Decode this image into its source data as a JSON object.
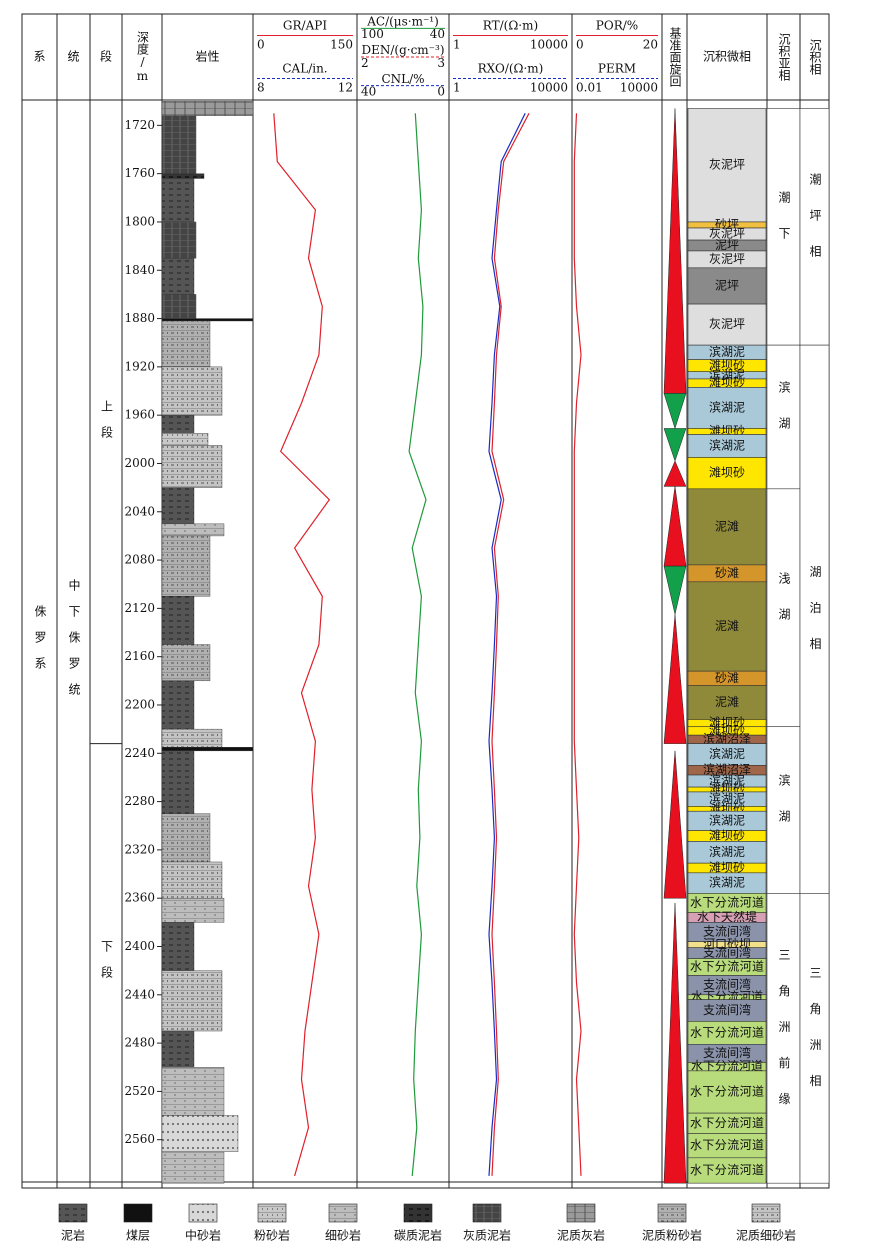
{
  "header": {
    "system": "系",
    "series": "统",
    "member": "段",
    "depth": "深度/m",
    "lithology": "岩性",
    "cycle": "基准面旋回",
    "microfacies": "沉积微相",
    "subfacies": "沉积亚相",
    "facies": "沉积相"
  },
  "depth_range": [
    1699,
    2600
  ],
  "depth_ticks": [
    1720,
    1760,
    1800,
    1840,
    1880,
    1920,
    1960,
    2000,
    2040,
    2080,
    2120,
    2160,
    2200,
    2240,
    2280,
    2320,
    2360,
    2400,
    2440,
    2480,
    2520,
    2560
  ],
  "depths": [
    1710,
    1750,
    1790,
    1830,
    1870,
    1910,
    1950,
    1990,
    2030,
    2070,
    2110,
    2150,
    2190,
    2230,
    2270,
    2310,
    2350,
    2390,
    2430,
    2470,
    2510,
    2550,
    2590
  ],
  "tracks": [
    {
      "curves": [
        {
          "name": "GR/API",
          "scale": [
            0,
            150
          ],
          "color": "#e0202a",
          "values": [
            30,
            35,
            90,
            80,
            100,
            95,
            70,
            40,
            110,
            60,
            100,
            95,
            70,
            90,
            85,
            90,
            80,
            95,
            85,
            75,
            70,
            80,
            60
          ]
        },
        {
          "name": "CAL/in.",
          "scale": [
            8,
            12
          ],
          "color": "#1a2cc0"
        }
      ]
    },
    {
      "curves": [
        {
          "name": "AC/(μs·m⁻¹)",
          "scale": [
            100,
            40
          ],
          "color": "#1f9a3a",
          "values": [
            62,
            60,
            58,
            60,
            57,
            58,
            62,
            66,
            55,
            64,
            58,
            60,
            62,
            58,
            60,
            59,
            61,
            58,
            60,
            62,
            63,
            61,
            64
          ]
        },
        {
          "name": "DEN/(g·cm⁻³)",
          "scale": [
            2,
            3
          ],
          "color": "#e0202a"
        },
        {
          "name": "CNL/%",
          "scale": [
            40,
            0
          ],
          "color": "#1a2cc0"
        }
      ]
    },
    {
      "curves": [
        {
          "name": "RT/(Ω·m)",
          "scale": [
            1,
            10000
          ],
          "color": "#e0202a",
          "log": true,
          "values": [
            400,
            60,
            40,
            30,
            50,
            35,
            30,
            25,
            60,
            30,
            40,
            35,
            30,
            25,
            30,
            35,
            30,
            25,
            30,
            35,
            40,
            30,
            25
          ]
        },
        {
          "name": "RXO/(Ω·m)",
          "scale": [
            1,
            10000
          ],
          "color": "#1a2cc0",
          "log": true,
          "values": [
            300,
            50,
            35,
            25,
            45,
            30,
            25,
            20,
            50,
            25,
            35,
            30,
            25,
            20,
            25,
            30,
            25,
            20,
            25,
            30,
            35,
            25,
            20
          ]
        }
      ]
    },
    {
      "curves": [
        {
          "name": "POR/%",
          "scale": [
            0,
            20
          ],
          "color": "#e0202a",
          "values": [
            1,
            0.5,
            0.5,
            0.5,
            1,
            2,
            1,
            0.5,
            0.5,
            0.5,
            0.5,
            0.5,
            0.5,
            0.5,
            1,
            1.5,
            1,
            0.5,
            1,
            2,
            1,
            1.5,
            2
          ]
        },
        {
          "name": "PERM",
          "scale": [
            0.01,
            10000
          ],
          "color": "#1a2cc0",
          "log": true
        }
      ]
    }
  ],
  "strata": {
    "system": [
      {
        "label": "侏罗系",
        "top": 1699,
        "bottom": 2600
      }
    ],
    "series": [
      {
        "label": "中下侏罗统",
        "top": 1699,
        "bottom": 2600
      }
    ],
    "member": [
      {
        "label": "上段",
        "top": 1706,
        "bottom": 2232
      },
      {
        "label": "下段",
        "top": 2232,
        "bottom": 2600
      }
    ]
  },
  "rocks": [
    "泥岩",
    "煤层",
    "中砂岩",
    "粉砂岩",
    "细砂岩",
    "碳质泥岩",
    "灰质泥岩",
    "泥质灰岩",
    "泥质粉砂岩",
    "泥质细砂岩"
  ],
  "lithology": [
    [
      1700,
      1712,
      7
    ],
    [
      1712,
      1760,
      6
    ],
    [
      1760,
      1764,
      5
    ],
    [
      1764,
      1800,
      0
    ],
    [
      1800,
      1830,
      6
    ],
    [
      1830,
      1860,
      0
    ],
    [
      1860,
      1880,
      6
    ],
    [
      1880,
      1882,
      1
    ],
    [
      1882,
      1920,
      8
    ],
    [
      1920,
      1960,
      9
    ],
    [
      1960,
      1975,
      0
    ],
    [
      1975,
      1985,
      3
    ],
    [
      1985,
      2020,
      9
    ],
    [
      2020,
      2050,
      0
    ],
    [
      2050,
      2060,
      4
    ],
    [
      2060,
      2110,
      8
    ],
    [
      2110,
      2150,
      0
    ],
    [
      2150,
      2180,
      8
    ],
    [
      2180,
      2220,
      0
    ],
    [
      2220,
      2235,
      9
    ],
    [
      2235,
      2238,
      1
    ],
    [
      2238,
      2290,
      0
    ],
    [
      2290,
      2330,
      8
    ],
    [
      2330,
      2360,
      9
    ],
    [
      2360,
      2380,
      4
    ],
    [
      2380,
      2420,
      0
    ],
    [
      2420,
      2470,
      9
    ],
    [
      2470,
      2500,
      0
    ],
    [
      2500,
      2540,
      4
    ],
    [
      2540,
      2570,
      2
    ],
    [
      2570,
      2596,
      4
    ]
  ],
  "cycles": {
    "colors": {
      "rise": "#e8101e",
      "fall": "#12a04a"
    },
    "items": [
      {
        "kind": "rise",
        "top": 1706,
        "bottom": 1942
      },
      {
        "kind": "fall",
        "top": 1942,
        "bottom": 1971
      },
      {
        "kind": "fall",
        "top": 1971,
        "bottom": 1998
      },
      {
        "kind": "rise",
        "top": 1998,
        "bottom": 2019
      },
      {
        "kind": "rise",
        "top": 2019,
        "bottom": 2085
      },
      {
        "kind": "fall",
        "top": 2085,
        "bottom": 2125
      },
      {
        "kind": "rise",
        "top": 2125,
        "bottom": 2232
      },
      {
        "kind": "rise",
        "top": 2238,
        "bottom": 2360
      },
      {
        "kind": "rise",
        "top": 2364,
        "bottom": 2596
      }
    ]
  },
  "palette": {
    "灰泥坪": "#dedede",
    "泥坪": "#8a8a8a",
    "砂坪": "#f2c040",
    "滨湖泥": "#a9c8d8",
    "滩坝砂": "#ffe600",
    "泥滩": "#8f893a",
    "砂滩": "#d4962a",
    "滨湖沼泽": "#a0664a",
    "水下分流河道": "#b8db7c",
    "水下天然堤": "#d8a0b4",
    "支流间湾": "#8a93aa",
    "河口砂坝": "#f2e08a"
  },
  "microfacies": [
    {
      "label": "灰泥坪",
      "top": 1706,
      "bottom": 1800
    },
    {
      "label": "砂坪",
      "top": 1800,
      "bottom": 1805
    },
    {
      "label": "灰泥坪",
      "top": 1805,
      "bottom": 1815
    },
    {
      "label": "泥坪",
      "top": 1815,
      "bottom": 1824
    },
    {
      "label": "灰泥坪",
      "top": 1824,
      "bottom": 1838
    },
    {
      "label": "泥坪",
      "top": 1838,
      "bottom": 1868
    },
    {
      "label": "灰泥坪",
      "top": 1868,
      "bottom": 1902
    },
    {
      "label": "滨湖泥",
      "top": 1902,
      "bottom": 1914
    },
    {
      "label": "滩坝砂",
      "top": 1914,
      "bottom": 1924
    },
    {
      "label": "滨湖泥",
      "top": 1924,
      "bottom": 1930
    },
    {
      "label": "滩坝砂",
      "top": 1930,
      "bottom": 1937
    },
    {
      "label": "滨湖泥",
      "top": 1937,
      "bottom": 1971
    },
    {
      "label": "滩坝砂",
      "top": 1971,
      "bottom": 1976
    },
    {
      "label": "滨湖泥",
      "top": 1976,
      "bottom": 1995
    },
    {
      "label": "滩坝砂",
      "top": 1995,
      "bottom": 2021
    },
    {
      "label": "泥滩",
      "top": 2021,
      "bottom": 2084
    },
    {
      "label": "砂滩",
      "top": 2084,
      "bottom": 2098
    },
    {
      "label": "泥滩",
      "top": 2098,
      "bottom": 2172
    },
    {
      "label": "砂滩",
      "top": 2172,
      "bottom": 2184
    },
    {
      "label": "泥滩",
      "top": 2184,
      "bottom": 2212
    },
    {
      "label": "滩坝砂",
      "top": 2212,
      "bottom": 2218
    },
    {
      "label": "滩坝砂",
      "top": 2218,
      "bottom": 2225
    },
    {
      "label": "滨湖沼泽",
      "top": 2225,
      "bottom": 2232
    },
    {
      "label": "滨湖泥",
      "top": 2232,
      "bottom": 2250
    },
    {
      "label": "滨湖沼泽",
      "top": 2250,
      "bottom": 2258
    },
    {
      "label": "滨湖泥",
      "top": 2258,
      "bottom": 2268
    },
    {
      "label": "滩坝砂",
      "top": 2268,
      "bottom": 2272
    },
    {
      "label": "滨湖泥",
      "top": 2272,
      "bottom": 2284
    },
    {
      "label": "滩坝砂",
      "top": 2284,
      "bottom": 2288
    },
    {
      "label": "滨湖泥",
      "top": 2288,
      "bottom": 2304
    },
    {
      "label": "滩坝砂",
      "top": 2304,
      "bottom": 2313
    },
    {
      "label": "滨湖泥",
      "top": 2313,
      "bottom": 2331
    },
    {
      "label": "滩坝砂",
      "top": 2331,
      "bottom": 2339
    },
    {
      "label": "滨湖泥",
      "top": 2339,
      "bottom": 2356
    },
    {
      "label": "水下分流河道",
      "top": 2356,
      "bottom": 2372
    },
    {
      "label": "水下天然堤",
      "top": 2372,
      "bottom": 2380
    },
    {
      "label": "支流间湾",
      "top": 2380,
      "bottom": 2396
    },
    {
      "label": "河口砂坝",
      "top": 2396,
      "bottom": 2401
    },
    {
      "label": "支流间湾",
      "top": 2401,
      "bottom": 2410
    },
    {
      "label": "水下分流河道",
      "top": 2410,
      "bottom": 2424
    },
    {
      "label": "支流间湾",
      "top": 2424,
      "bottom": 2440
    },
    {
      "label": "水下分流河道",
      "top": 2440,
      "bottom": 2444
    },
    {
      "label": "支流间湾",
      "top": 2444,
      "bottom": 2462
    },
    {
      "label": "水下分流河道",
      "top": 2462,
      "bottom": 2481
    },
    {
      "label": "支流间湾",
      "top": 2481,
      "bottom": 2496
    },
    {
      "label": "水下分流河道",
      "top": 2496,
      "bottom": 2503
    },
    {
      "label": "水下分流河道",
      "top": 2503,
      "bottom": 2538
    },
    {
      "label": "水下分流河道",
      "top": 2538,
      "bottom": 2555
    },
    {
      "label": "水下分流河道",
      "top": 2555,
      "bottom": 2575
    },
    {
      "label": "水下分流河道",
      "top": 2575,
      "bottom": 2596
    }
  ],
  "subfacies": [
    {
      "label": "潮下",
      "top": 1706,
      "bottom": 1902
    },
    {
      "label": "滨湖",
      "top": 1902,
      "bottom": 2021
    },
    {
      "label": "浅湖",
      "top": 2021,
      "bottom": 2218
    },
    {
      "label": "滨湖",
      "top": 2218,
      "bottom": 2356
    },
    {
      "label": "三角洲前缘",
      "top": 2356,
      "bottom": 2596
    }
  ],
  "facies": [
    {
      "label": "潮坪相",
      "top": 1706,
      "bottom": 1902
    },
    {
      "label": "湖泊相",
      "top": 1902,
      "bottom": 2356
    },
    {
      "label": "三角洲相",
      "top": 2356,
      "bottom": 2596
    }
  ]
}
